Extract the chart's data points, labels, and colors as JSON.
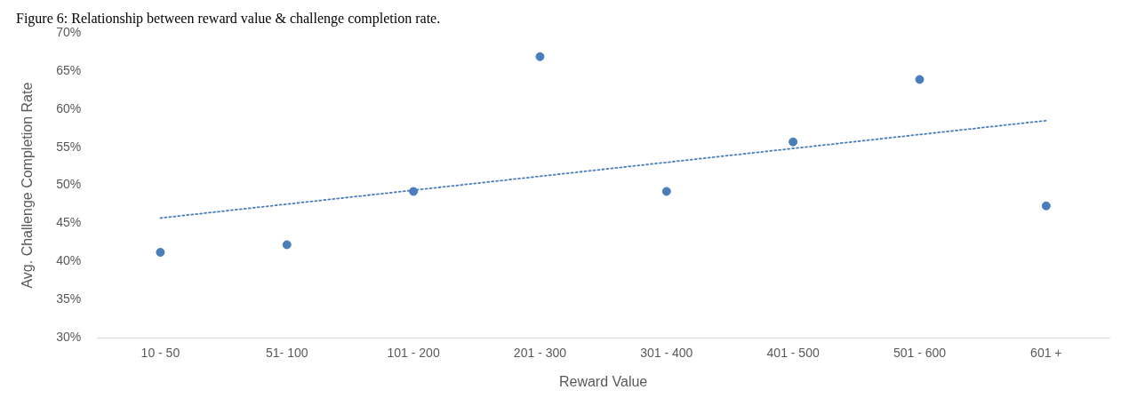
{
  "chart_data": {
    "type": "scatter",
    "title": "Figure 6: Relationship between reward value & challenge completion rate.",
    "xlabel": "Reward Value",
    "ylabel": "Avg. Challenge Completion Rate",
    "categories": [
      "10 - 50",
      "51- 100",
      "101 - 200",
      "201 - 300",
      "301 - 400",
      "401 - 500",
      "501 - 600",
      "601 +"
    ],
    "series": [
      {
        "color": "#4a7ebb",
        "values": [
          41.2,
          42.2,
          49.2,
          66.9,
          49.2,
          55.7,
          63.9,
          47.3
        ],
        "marker": "circle"
      },
      {
        "type": "line",
        "color": "#4a7ebb",
        "x": [
          "10 - 50",
          "601 +"
        ],
        "values": [
          45.7,
          58.5
        ],
        "line_style": "dotted",
        "marker": "none"
      }
    ],
    "ylim": [
      30,
      70
    ],
    "yticks": [
      {
        "value": 30,
        "label": "30%"
      },
      {
        "value": 35,
        "label": "35%"
      },
      {
        "value": 40,
        "label": "40%"
      },
      {
        "value": 45,
        "label": "45%"
      },
      {
        "value": 50,
        "label": "50%"
      },
      {
        "value": 55,
        "label": "55%"
      },
      {
        "value": 60,
        "label": "60%"
      },
      {
        "value": 65,
        "label": "65%"
      },
      {
        "value": 70,
        "label": "70%"
      }
    ],
    "grid": false,
    "legend": false
  }
}
